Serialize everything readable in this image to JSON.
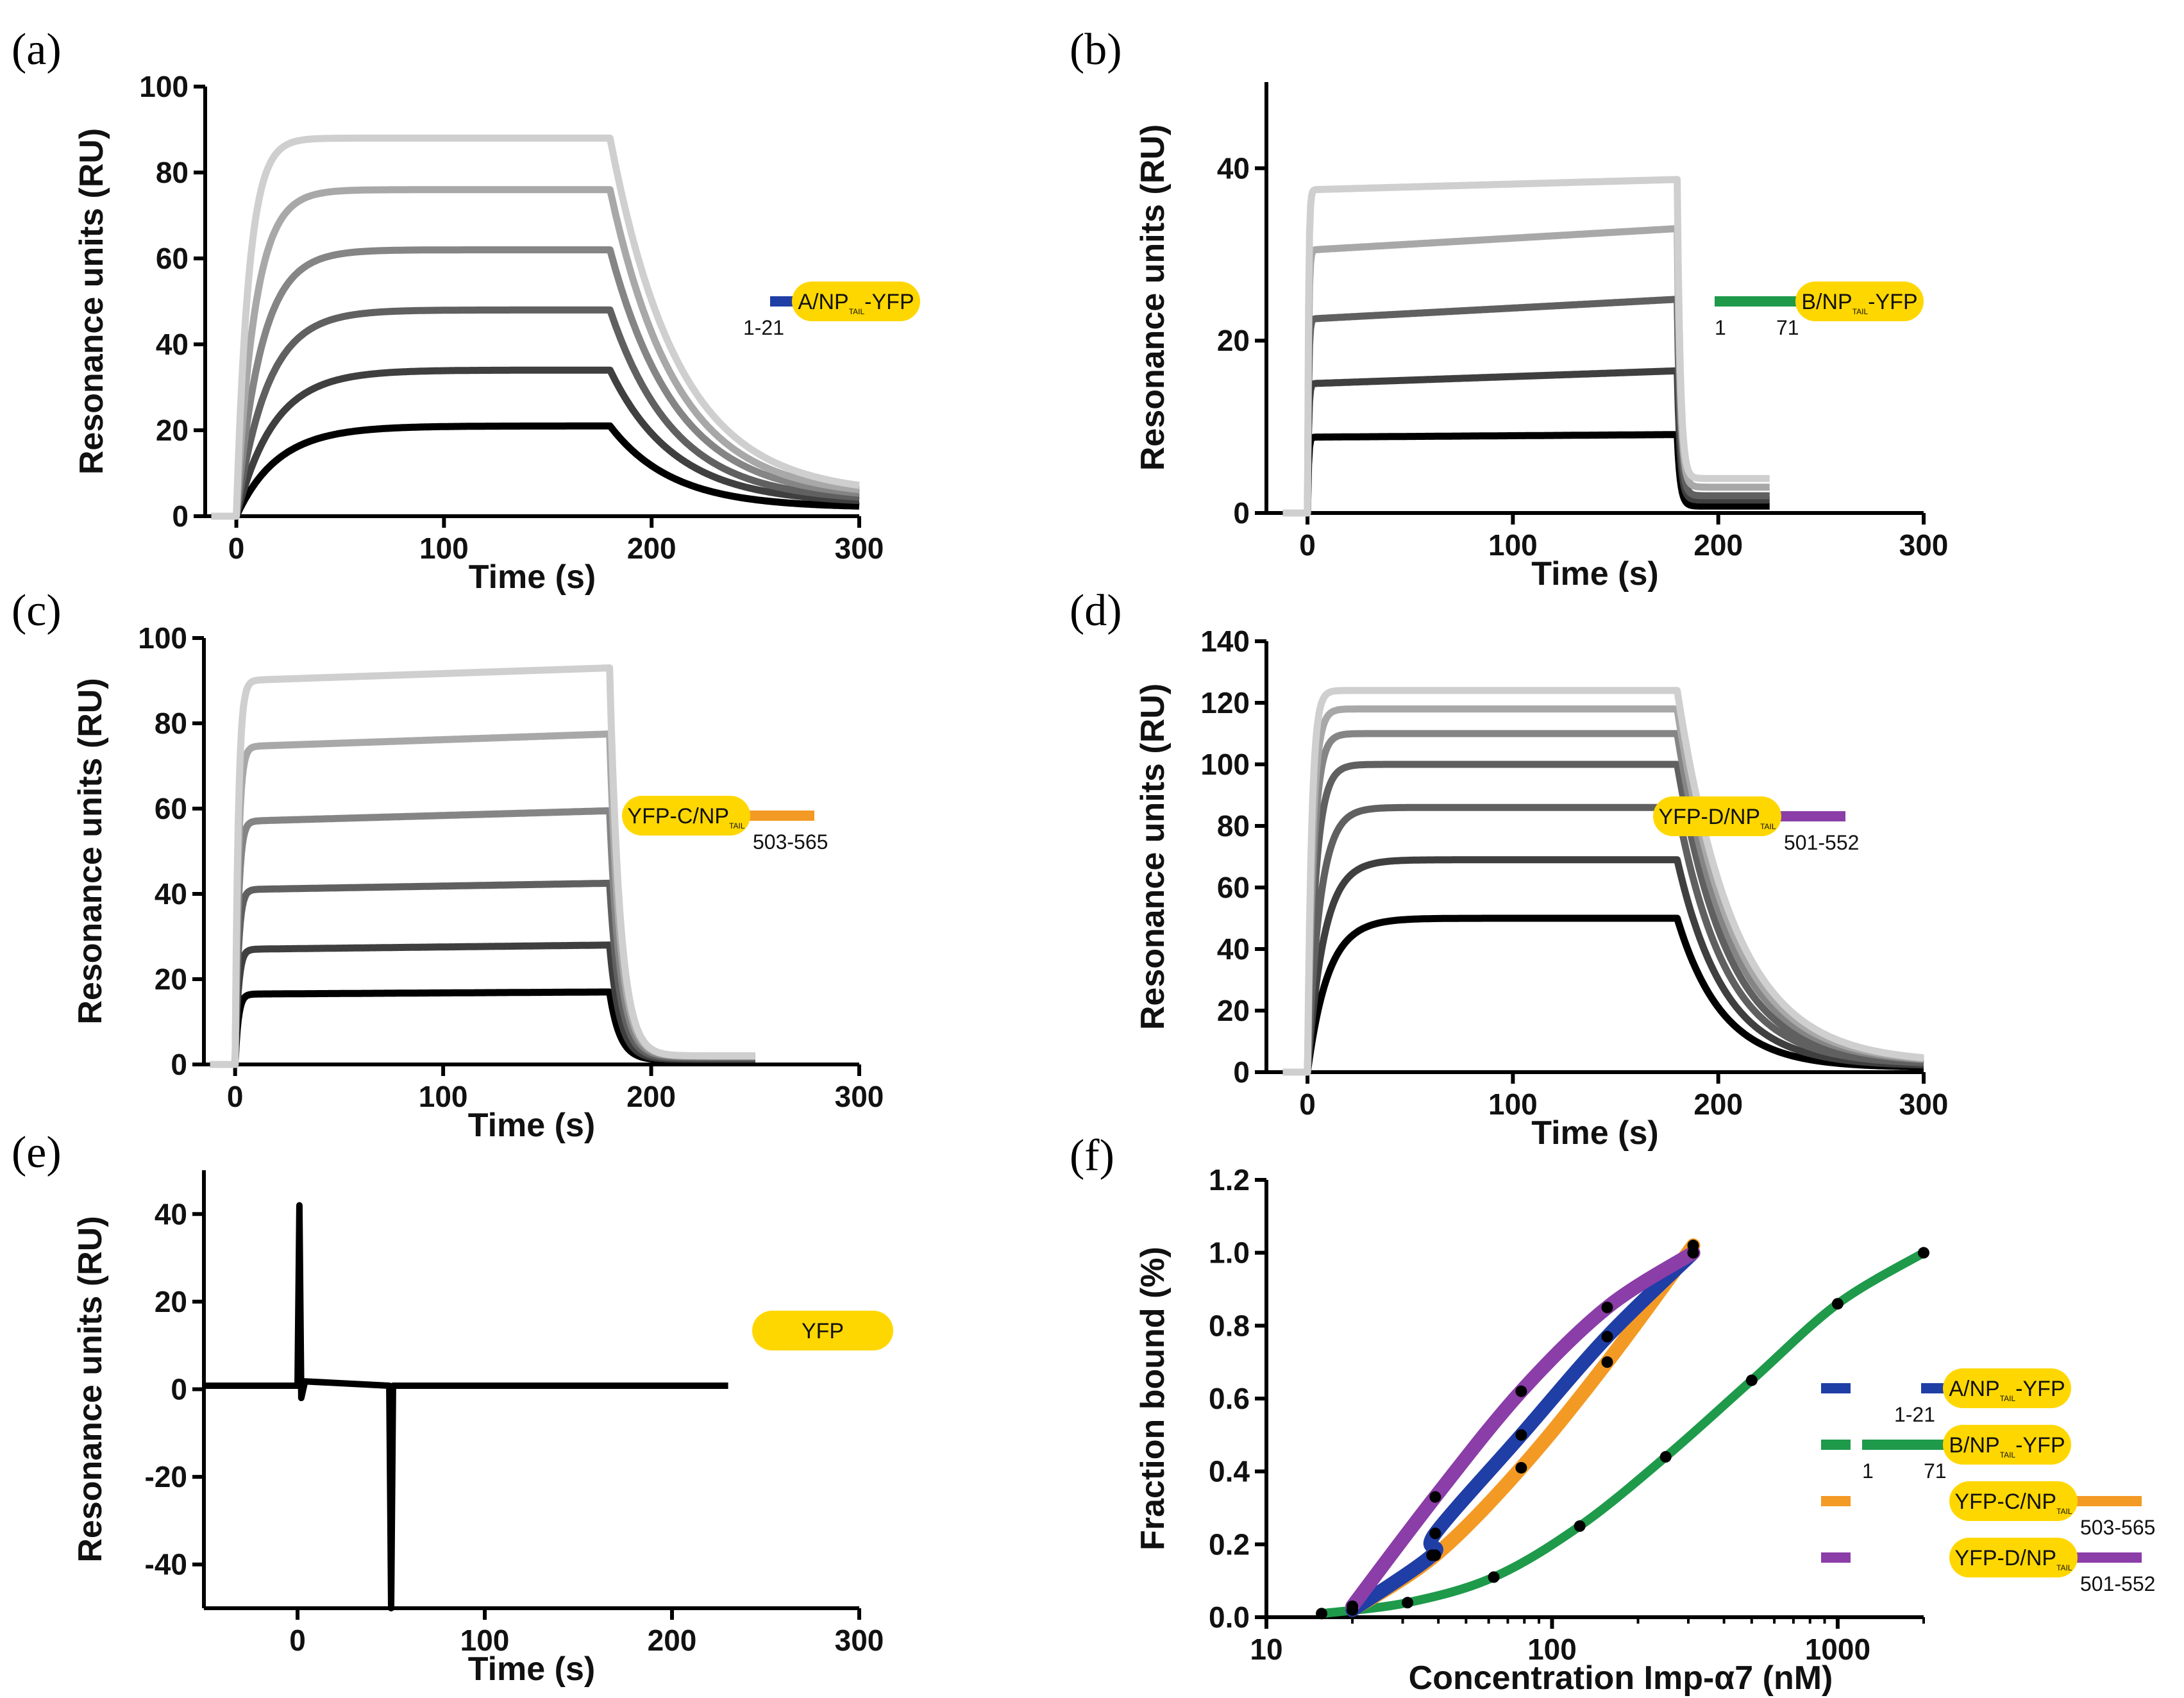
{
  "colors": {
    "yfp": "#FFD700",
    "segment_a": "#1F3EA6",
    "segment_b": "#1E9A4A",
    "segment_c": "#F39A25",
    "segment_d": "#8B3DA8",
    "grays": [
      "#CFCFCF",
      "#A8A8A8",
      "#858585",
      "#606060",
      "#3F3F3F",
      "#000000"
    ]
  },
  "chart_data": [
    {
      "panel": "(a)",
      "type": "line",
      "xlabel": "Time (s)",
      "ylabel": "Resonance units (RU)",
      "xlim": [
        -15,
        300
      ],
      "ylim": [
        0,
        100
      ],
      "xticks": [
        "0",
        "100",
        "200",
        "300"
      ],
      "yticks": [
        "0",
        "20",
        "40",
        "60",
        "80",
        "100"
      ],
      "association_end_s": 180,
      "end_time_s": 300,
      "series": [
        {
          "plateau_RU": 88,
          "rise_tau_s": 6,
          "decay_tau_s": 33,
          "baseline_RU": 5,
          "drift_RU": 0
        },
        {
          "plateau_RU": 76,
          "rise_tau_s": 9,
          "decay_tau_s": 32,
          "baseline_RU": 4.5,
          "drift_RU": 0
        },
        {
          "plateau_RU": 62,
          "rise_tau_s": 12,
          "decay_tau_s": 32,
          "baseline_RU": 4,
          "drift_RU": 0
        },
        {
          "plateau_RU": 48,
          "rise_tau_s": 15,
          "decay_tau_s": 31,
          "baseline_RU": 3.5,
          "drift_RU": 0
        },
        {
          "plateau_RU": 34,
          "rise_tau_s": 18,
          "decay_tau_s": 31,
          "baseline_RU": 3,
          "drift_RU": 0
        },
        {
          "plateau_RU": 21,
          "rise_tau_s": 20,
          "decay_tau_s": 30,
          "baseline_RU": 2,
          "drift_RU": 0
        }
      ],
      "construct": {
        "label": "A/NP",
        "sub": "TAIL",
        "suffix": "-YFP",
        "numbers": [
          "1-21"
        ]
      }
    },
    {
      "panel": "(b)",
      "type": "line",
      "xlabel": "Time (s)",
      "ylabel": "Resonance units (RU)",
      "xlim": [
        -20,
        300
      ],
      "ylim": [
        0,
        50
      ],
      "xticks": [
        "0",
        "100",
        "200",
        "300"
      ],
      "yticks": [
        "0",
        "20",
        "40"
      ],
      "association_end_s": 180,
      "end_time_s": 225,
      "series": [
        {
          "plateau_RU": 37.5,
          "rise_tau_s": 0.5,
          "decay_tau_s": 1.5,
          "baseline_RU": 4,
          "drift_RU": 1.2
        },
        {
          "plateau_RU": 30.5,
          "rise_tau_s": 0.5,
          "decay_tau_s": 1.5,
          "baseline_RU": 3,
          "drift_RU": 2.5
        },
        {
          "plateau_RU": 22.5,
          "rise_tau_s": 0.5,
          "decay_tau_s": 1.5,
          "baseline_RU": 2,
          "drift_RU": 2.3
        },
        {
          "plateau_RU": 15,
          "rise_tau_s": 0.5,
          "decay_tau_s": 1.5,
          "baseline_RU": 1.5,
          "drift_RU": 1.5
        },
        {
          "plateau_RU": 8.8,
          "rise_tau_s": 0.5,
          "decay_tau_s": 1.5,
          "baseline_RU": 0.8,
          "drift_RU": 0.3
        }
      ],
      "construct": {
        "label": "B/NP",
        "sub": "TAIL",
        "suffix": "-YFP",
        "numbers": [
          "1",
          "71"
        ]
      }
    },
    {
      "panel": "(c)",
      "type": "line",
      "xlabel": "Time (s)",
      "ylabel": "Resonance units (RU)",
      "xlim": [
        -15,
        300
      ],
      "ylim": [
        0,
        100
      ],
      "xticks": [
        "0",
        "100",
        "200",
        "300"
      ],
      "yticks": [
        "0",
        "20",
        "40",
        "60",
        "80",
        "100"
      ],
      "association_end_s": 180,
      "end_time_s": 250,
      "series": [
        {
          "plateau_RU": 90,
          "rise_tau_s": 1.5,
          "decay_tau_s": 5,
          "baseline_RU": 2,
          "drift_RU": 3
        },
        {
          "plateau_RU": 74.5,
          "rise_tau_s": 1.5,
          "decay_tau_s": 5,
          "baseline_RU": 2,
          "drift_RU": 3
        },
        {
          "plateau_RU": 57,
          "rise_tau_s": 1.5,
          "decay_tau_s": 5,
          "baseline_RU": 1.8,
          "drift_RU": 2.5
        },
        {
          "plateau_RU": 41,
          "rise_tau_s": 1.5,
          "decay_tau_s": 5,
          "baseline_RU": 1.5,
          "drift_RU": 1.5
        },
        {
          "plateau_RU": 27,
          "rise_tau_s": 1.5,
          "decay_tau_s": 5,
          "baseline_RU": 1.2,
          "drift_RU": 1
        },
        {
          "plateau_RU": 16.5,
          "rise_tau_s": 1.5,
          "decay_tau_s": 5,
          "baseline_RU": 1,
          "drift_RU": 0.5
        }
      ],
      "construct": {
        "label": "YFP-C/NP",
        "sub": "TAIL",
        "suffix": "",
        "numbers": [
          "503-565"
        ]
      }
    },
    {
      "panel": "(d)",
      "type": "line",
      "xlabel": "Time (s)",
      "ylabel": "Resonance units (RU)",
      "xlim": [
        -20,
        300
      ],
      "ylim": [
        0,
        140
      ],
      "xticks": [
        "0",
        "100",
        "200",
        "300"
      ],
      "yticks": [
        "0",
        "20",
        "40",
        "60",
        "80",
        "100",
        "120",
        "140"
      ],
      "association_end_s": 180,
      "end_time_s": 300,
      "series": [
        {
          "plateau_RU": 124,
          "rise_tau_s": 2,
          "decay_tau_s": 28,
          "baseline_RU": 3,
          "drift_RU": 0
        },
        {
          "plateau_RU": 118,
          "rise_tau_s": 2.5,
          "decay_tau_s": 27,
          "baseline_RU": 3,
          "drift_RU": 0
        },
        {
          "plateau_RU": 110,
          "rise_tau_s": 3,
          "decay_tau_s": 26,
          "baseline_RU": 3,
          "drift_RU": 0
        },
        {
          "plateau_RU": 100,
          "rise_tau_s": 4,
          "decay_tau_s": 25,
          "baseline_RU": 2.5,
          "drift_RU": 0
        },
        {
          "plateau_RU": 86,
          "rise_tau_s": 6,
          "decay_tau_s": 24,
          "baseline_RU": 2.5,
          "drift_RU": 0
        },
        {
          "plateau_RU": 69,
          "rise_tau_s": 8,
          "decay_tau_s": 23,
          "baseline_RU": 2,
          "drift_RU": 0
        },
        {
          "plateau_RU": 50,
          "rise_tau_s": 10,
          "decay_tau_s": 22,
          "baseline_RU": 1.5,
          "drift_RU": 0
        }
      ],
      "construct": {
        "label": "YFP-D/NP",
        "sub": "TAIL",
        "suffix": "",
        "numbers": [
          "501-552"
        ]
      }
    },
    {
      "panel": "(e)",
      "type": "line",
      "xlabel": "Time (s)",
      "ylabel": "Resonance units (RU)",
      "xlim": [
        -50,
        300
      ],
      "ylim": [
        -50,
        50
      ],
      "xticks": [
        "0",
        "100",
        "200",
        "300"
      ],
      "yticks": [
        "-40",
        "-20",
        "0",
        "20",
        "40"
      ],
      "trace": {
        "baseline_RU": 0.8,
        "end_time_s": 230,
        "spike_up": {
          "t_s": 1,
          "peak_RU": 42
        },
        "spike_down": {
          "t_s": 50,
          "min_RU": -50
        }
      },
      "construct": {
        "label": "YFP",
        "sub": "",
        "suffix": "",
        "numbers": []
      }
    },
    {
      "panel": "(f)",
      "type": "scatter",
      "xlabel": "Concentration Imp-α7 (nM)",
      "ylabel": "Fraction bound (%)",
      "xscale": "log",
      "xlim": [
        10,
        2000
      ],
      "ylim": [
        0,
        1.2
      ],
      "xticks": [
        "10",
        "100",
        "1000"
      ],
      "yticks": [
        "0.0",
        "0.2",
        "0.4",
        "0.6",
        "0.8",
        "1.0",
        "1.2"
      ],
      "series": [
        {
          "construct": "A",
          "x": [
            20,
            38,
            39,
            78,
            156,
            312
          ],
          "y": [
            0.02,
            0.17,
            0.23,
            0.5,
            0.77,
            1.0
          ]
        },
        {
          "construct": "B",
          "x": [
            15.6,
            31.2,
            62.5,
            125,
            250,
            500,
            1000,
            2000
          ],
          "y": [
            0.01,
            0.04,
            0.11,
            0.25,
            0.44,
            0.65,
            0.86,
            1.0
          ]
        },
        {
          "construct": "C",
          "x": [
            20,
            39,
            78,
            156,
            312
          ],
          "y": [
            0.02,
            0.17,
            0.41,
            0.7,
            1.02
          ]
        },
        {
          "construct": "D",
          "x": [
            20,
            39,
            78,
            156,
            312
          ],
          "y": [
            0.03,
            0.33,
            0.62,
            0.85,
            1.0
          ]
        }
      ],
      "legend": [
        {
          "construct": "A",
          "label": "A/NP",
          "sub": "TAIL",
          "suffix": "-YFP",
          "numbers": [
            "1-21"
          ]
        },
        {
          "construct": "B",
          "label": "B/NP",
          "sub": "TAIL",
          "suffix": "-YFP",
          "numbers": [
            "1",
            "71"
          ]
        },
        {
          "construct": "C",
          "label": "YFP-C/NP",
          "sub": "TAIL",
          "suffix": "",
          "numbers": [
            "503-565"
          ]
        },
        {
          "construct": "D",
          "label": "YFP-D/NP",
          "sub": "TAIL",
          "suffix": "",
          "numbers": [
            "501-552"
          ]
        }
      ]
    }
  ]
}
